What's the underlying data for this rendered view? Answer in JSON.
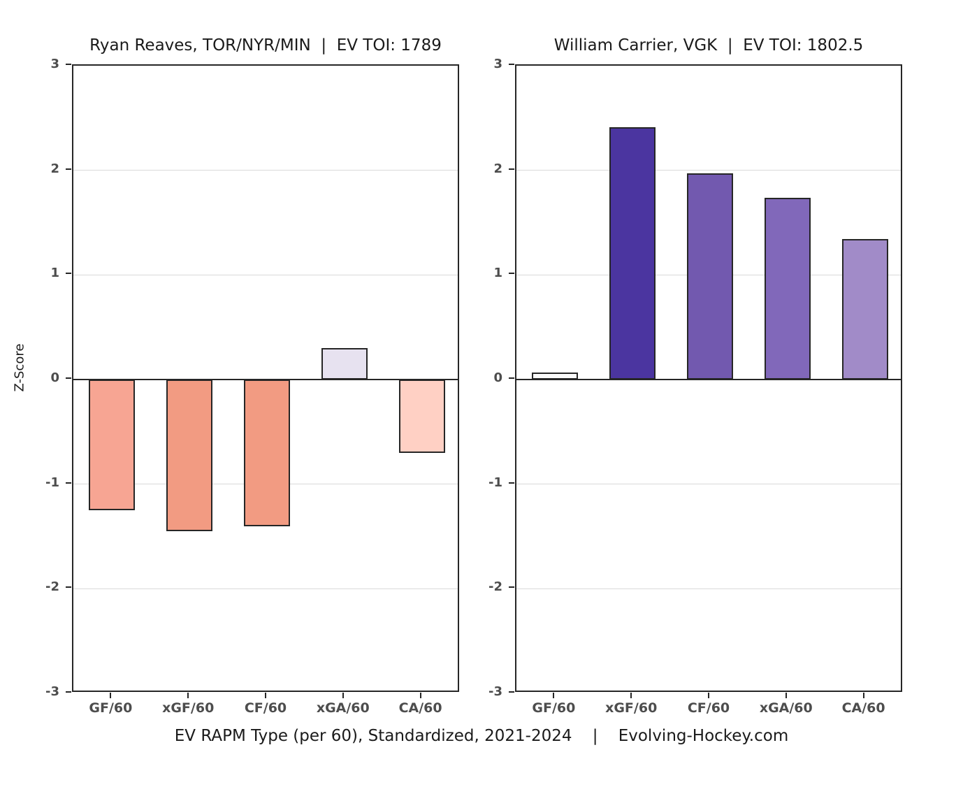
{
  "caption": "EV RAPM Type (per 60), Standardized, 2021-2024    |    Evolving-Hockey.com",
  "y_axis_title": "Z-Score",
  "chart_data": [
    {
      "type": "bar",
      "title": "Ryan Reaves, TOR/NYR/MIN  |  EV TOI: 1789",
      "categories": [
        "GF/60",
        "xGF/60",
        "CF/60",
        "xGA/60",
        "CA/60"
      ],
      "values": [
        -1.25,
        -1.45,
        -1.4,
        0.3,
        -0.7
      ],
      "bar_colors": [
        "#F7A593",
        "#F29B82",
        "#F29B82",
        "#E7E2F0",
        "#FFD0C4"
      ],
      "xlabel": "",
      "ylabel": "Z-Score",
      "ylim": [
        -3,
        3
      ],
      "yticks": [
        3,
        2,
        1,
        0,
        -1,
        -2,
        -3
      ],
      "grid": true,
      "legend": "none"
    },
    {
      "type": "bar",
      "title": "William Carrier, VGK  |  EV TOI: 1802.5",
      "categories": [
        "GF/60",
        "xGF/60",
        "CF/60",
        "xGA/60",
        "CA/60"
      ],
      "values": [
        0.07,
        2.41,
        1.97,
        1.74,
        1.34
      ],
      "bar_colors": [
        "#FBFBFB",
        "#4B35A0",
        "#7259AF",
        "#8168BA",
        "#A18BC8"
      ],
      "xlabel": "",
      "ylabel": "",
      "ylim": [
        -3,
        3
      ],
      "yticks": [
        3,
        2,
        1,
        0,
        -1,
        -2,
        -3
      ],
      "grid": true,
      "legend": "none"
    }
  ],
  "colors": {
    "axis": "#262626",
    "gridline": "#d9d9d9",
    "tick_label": "#4d4d4d",
    "text": "#1a1a1a",
    "background": "#ffffff"
  }
}
